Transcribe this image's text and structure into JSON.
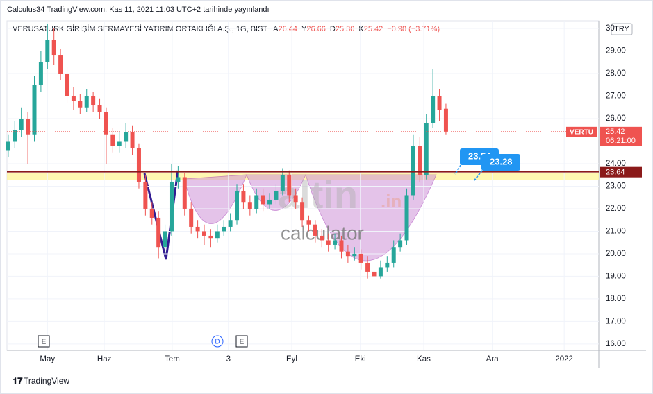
{
  "header": {
    "published": "Calculus34 TradingView.com, Kas 11, 2021 11:03 UTC+2 tarihinde yayınlandı",
    "brand": "TradingView"
  },
  "chart_data": {
    "type": "candlestick",
    "title": "VERUSATURK GİRİŞİM SERMAYESİ YATIRIM ORTAKLIĞI A.Ş., 1G, BIST",
    "legend_values": [
      {
        "label": "A",
        "value": "26.44"
      },
      {
        "label": "Y",
        "value": "26.66"
      },
      {
        "label": "D",
        "value": "25.30"
      },
      {
        "label": "K",
        "value": "25.42"
      }
    ],
    "change": "−0.98 (−3.71%)",
    "currency": "TRY",
    "symbol": "VERTU",
    "countdown": "06:21:00",
    "last_price": 25.42,
    "support": 23.64,
    "callouts": [
      23.54,
      23.28
    ],
    "watermark": [
      "altin",
      ".in",
      "calculator"
    ],
    "events": [
      "E",
      "D",
      "E"
    ],
    "colors": {
      "up": "#26a69a",
      "down": "#ef5350"
    },
    "xlim": [
      -0.2,
      90.4
    ],
    "ylim": [
      15.72,
      30.34
    ],
    "xticks": [
      {
        "value": 6,
        "label": "May"
      },
      {
        "value": 14.7,
        "label": "Haz"
      },
      {
        "value": 25.1,
        "label": "Tem"
      },
      {
        "value": 33.7,
        "label": "3"
      },
      {
        "value": 43.4,
        "label": "Eyl"
      },
      {
        "value": 53.9,
        "label": "Eki"
      },
      {
        "value": 63.6,
        "label": "Kas"
      },
      {
        "value": 74.1,
        "label": "Ara"
      },
      {
        "value": 85.1,
        "label": "2022"
      }
    ],
    "yticks": [
      {
        "value": 16,
        "label": "16.00"
      },
      {
        "value": 17,
        "label": "17.00"
      },
      {
        "value": 18,
        "label": "18.00"
      },
      {
        "value": 19,
        "label": "19.00"
      },
      {
        "value": 20,
        "label": "20.00"
      },
      {
        "value": 21,
        "label": "21.00"
      },
      {
        "value": 22,
        "label": "22.00"
      },
      {
        "value": 23,
        "label": "23.00"
      },
      {
        "value": 24,
        "label": "24.00"
      },
      {
        "value": 26,
        "label": "26.00"
      },
      {
        "value": 27,
        "label": "27.00"
      },
      {
        "value": 28,
        "label": "28.00"
      },
      {
        "value": 29,
        "label": "29.00"
      },
      {
        "value": 30,
        "label": "30"
      }
    ],
    "ohlc": [
      [
        24.6,
        25.3,
        24.3,
        25.0
      ],
      [
        25.0,
        25.9,
        24.7,
        25.5
      ],
      [
        25.5,
        26.5,
        25.2,
        26.0
      ],
      [
        26.0,
        26.3,
        24.0,
        25.3
      ],
      [
        25.3,
        27.9,
        25.0,
        27.5
      ],
      [
        27.5,
        29.0,
        27.2,
        28.5
      ],
      [
        28.5,
        30.2,
        28.2,
        29.5
      ],
      [
        29.5,
        30.0,
        28.4,
        28.8
      ],
      [
        28.8,
        29.1,
        27.7,
        28.0
      ],
      [
        28.0,
        28.3,
        26.7,
        27.0
      ],
      [
        27.0,
        27.4,
        26.4,
        26.8
      ],
      [
        26.8,
        27.1,
        26.2,
        26.5
      ],
      [
        26.5,
        27.3,
        26.3,
        27.0
      ],
      [
        27.0,
        27.2,
        26.3,
        26.6
      ],
      [
        26.6,
        26.9,
        26.0,
        26.3
      ],
      [
        26.3,
        26.5,
        24.0,
        25.3
      ],
      [
        25.3,
        25.6,
        24.5,
        24.8
      ],
      [
        24.8,
        25.4,
        24.5,
        25.0
      ],
      [
        25.0,
        25.8,
        24.7,
        25.4
      ],
      [
        25.4,
        25.7,
        24.4,
        24.7
      ],
      [
        24.7,
        24.9,
        22.9,
        23.2
      ],
      [
        23.2,
        23.5,
        21.7,
        22.0
      ],
      [
        22.0,
        22.3,
        21.3,
        21.6
      ],
      [
        21.6,
        21.9,
        19.8,
        20.3
      ],
      [
        20.3,
        21.3,
        20.0,
        21.0
      ],
      [
        21.0,
        24.0,
        20.8,
        23.2
      ],
      [
        23.2,
        23.9,
        22.9,
        23.4
      ],
      [
        23.4,
        23.6,
        21.7,
        22.0
      ],
      [
        22.0,
        22.3,
        20.9,
        21.2
      ],
      [
        21.2,
        21.5,
        20.7,
        21.0
      ],
      [
        21.0,
        21.3,
        20.4,
        20.8
      ],
      [
        20.8,
        21.1,
        20.3,
        20.7
      ],
      [
        20.7,
        21.3,
        20.5,
        21.0
      ],
      [
        21.0,
        21.5,
        20.8,
        21.2
      ],
      [
        21.2,
        21.8,
        21.0,
        21.5
      ],
      [
        21.5,
        23.1,
        21.3,
        22.8
      ],
      [
        22.8,
        23.1,
        22.0,
        22.3
      ],
      [
        22.3,
        22.6,
        21.7,
        22.0
      ],
      [
        22.0,
        22.9,
        21.8,
        22.6
      ],
      [
        22.6,
        22.9,
        21.9,
        22.2
      ],
      [
        22.2,
        22.7,
        22.0,
        22.4
      ],
      [
        22.4,
        23.1,
        22.2,
        22.8
      ],
      [
        22.8,
        23.8,
        22.6,
        23.5
      ],
      [
        23.5,
        23.7,
        22.3,
        22.6
      ],
      [
        22.6,
        22.9,
        22.0,
        22.3
      ],
      [
        22.3,
        22.5,
        21.2,
        21.5
      ],
      [
        21.5,
        21.7,
        21.0,
        21.3
      ],
      [
        21.3,
        21.5,
        20.5,
        20.8
      ],
      [
        20.8,
        21.1,
        20.3,
        20.6
      ],
      [
        20.6,
        20.9,
        20.1,
        20.4
      ],
      [
        20.4,
        20.9,
        20.2,
        20.6
      ],
      [
        20.6,
        20.8,
        19.8,
        20.1
      ],
      [
        20.1,
        20.4,
        19.6,
        19.9
      ],
      [
        19.9,
        20.3,
        19.7,
        20.0
      ],
      [
        20.0,
        20.2,
        19.3,
        19.6
      ],
      [
        19.6,
        19.9,
        18.9,
        19.2
      ],
      [
        19.2,
        19.5,
        18.8,
        19.0
      ],
      [
        19.0,
        19.7,
        18.9,
        19.4
      ],
      [
        19.4,
        19.9,
        19.2,
        19.6
      ],
      [
        19.6,
        20.6,
        19.4,
        20.3
      ],
      [
        20.3,
        20.9,
        20.1,
        20.6
      ],
      [
        20.6,
        22.9,
        20.4,
        22.6
      ],
      [
        22.6,
        25.3,
        22.4,
        24.8
      ],
      [
        24.8,
        25.2,
        23.2,
        23.5
      ],
      [
        23.5,
        26.2,
        23.3,
        25.8
      ],
      [
        25.8,
        28.2,
        25.6,
        27.0
      ],
      [
        27.0,
        27.3,
        25.9,
        26.4
      ],
      [
        26.44,
        26.66,
        25.3,
        25.42
      ]
    ]
  }
}
